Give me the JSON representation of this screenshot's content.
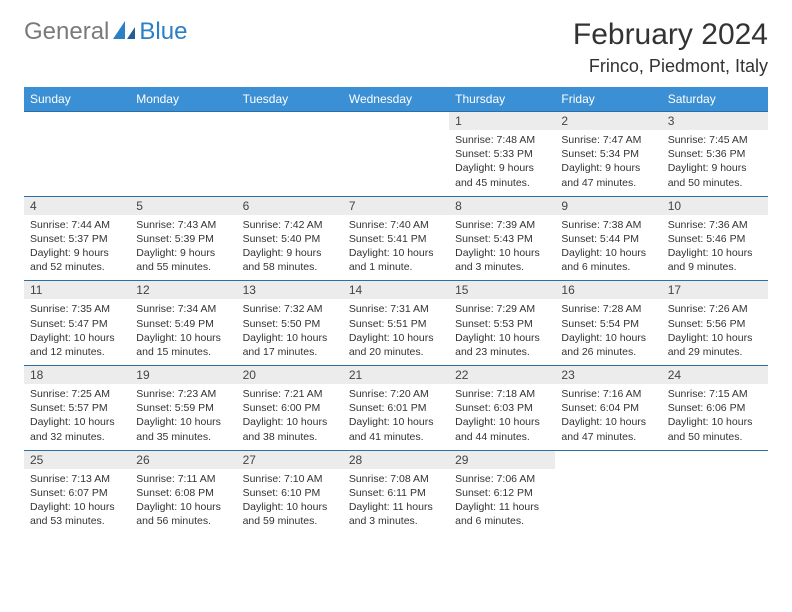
{
  "logo": {
    "text1": "General",
    "text2": "Blue"
  },
  "title": "February 2024",
  "location": "Frinco, Piedmont, Italy",
  "colors": {
    "header_bg": "#3b8fd4",
    "header_text": "#ffffff",
    "border": "#2a6fa8",
    "daynum_bg": "#ececec",
    "text": "#333333",
    "logo_gray": "#7a7a7a",
    "logo_blue": "#2a7fc5"
  },
  "day_headers": [
    "Sunday",
    "Monday",
    "Tuesday",
    "Wednesday",
    "Thursday",
    "Friday",
    "Saturday"
  ],
  "weeks": [
    {
      "nums": [
        "",
        "",
        "",
        "",
        "1",
        "2",
        "3"
      ],
      "cells": [
        null,
        null,
        null,
        null,
        {
          "sr": "Sunrise: 7:48 AM",
          "ss": "Sunset: 5:33 PM",
          "dl": "Daylight: 9 hours and 45 minutes."
        },
        {
          "sr": "Sunrise: 7:47 AM",
          "ss": "Sunset: 5:34 PM",
          "dl": "Daylight: 9 hours and 47 minutes."
        },
        {
          "sr": "Sunrise: 7:45 AM",
          "ss": "Sunset: 5:36 PM",
          "dl": "Daylight: 9 hours and 50 minutes."
        }
      ]
    },
    {
      "nums": [
        "4",
        "5",
        "6",
        "7",
        "8",
        "9",
        "10"
      ],
      "cells": [
        {
          "sr": "Sunrise: 7:44 AM",
          "ss": "Sunset: 5:37 PM",
          "dl": "Daylight: 9 hours and 52 minutes."
        },
        {
          "sr": "Sunrise: 7:43 AM",
          "ss": "Sunset: 5:39 PM",
          "dl": "Daylight: 9 hours and 55 minutes."
        },
        {
          "sr": "Sunrise: 7:42 AM",
          "ss": "Sunset: 5:40 PM",
          "dl": "Daylight: 9 hours and 58 minutes."
        },
        {
          "sr": "Sunrise: 7:40 AM",
          "ss": "Sunset: 5:41 PM",
          "dl": "Daylight: 10 hours and 1 minute."
        },
        {
          "sr": "Sunrise: 7:39 AM",
          "ss": "Sunset: 5:43 PM",
          "dl": "Daylight: 10 hours and 3 minutes."
        },
        {
          "sr": "Sunrise: 7:38 AM",
          "ss": "Sunset: 5:44 PM",
          "dl": "Daylight: 10 hours and 6 minutes."
        },
        {
          "sr": "Sunrise: 7:36 AM",
          "ss": "Sunset: 5:46 PM",
          "dl": "Daylight: 10 hours and 9 minutes."
        }
      ]
    },
    {
      "nums": [
        "11",
        "12",
        "13",
        "14",
        "15",
        "16",
        "17"
      ],
      "cells": [
        {
          "sr": "Sunrise: 7:35 AM",
          "ss": "Sunset: 5:47 PM",
          "dl": "Daylight: 10 hours and 12 minutes."
        },
        {
          "sr": "Sunrise: 7:34 AM",
          "ss": "Sunset: 5:49 PM",
          "dl": "Daylight: 10 hours and 15 minutes."
        },
        {
          "sr": "Sunrise: 7:32 AM",
          "ss": "Sunset: 5:50 PM",
          "dl": "Daylight: 10 hours and 17 minutes."
        },
        {
          "sr": "Sunrise: 7:31 AM",
          "ss": "Sunset: 5:51 PM",
          "dl": "Daylight: 10 hours and 20 minutes."
        },
        {
          "sr": "Sunrise: 7:29 AM",
          "ss": "Sunset: 5:53 PM",
          "dl": "Daylight: 10 hours and 23 minutes."
        },
        {
          "sr": "Sunrise: 7:28 AM",
          "ss": "Sunset: 5:54 PM",
          "dl": "Daylight: 10 hours and 26 minutes."
        },
        {
          "sr": "Sunrise: 7:26 AM",
          "ss": "Sunset: 5:56 PM",
          "dl": "Daylight: 10 hours and 29 minutes."
        }
      ]
    },
    {
      "nums": [
        "18",
        "19",
        "20",
        "21",
        "22",
        "23",
        "24"
      ],
      "cells": [
        {
          "sr": "Sunrise: 7:25 AM",
          "ss": "Sunset: 5:57 PM",
          "dl": "Daylight: 10 hours and 32 minutes."
        },
        {
          "sr": "Sunrise: 7:23 AM",
          "ss": "Sunset: 5:59 PM",
          "dl": "Daylight: 10 hours and 35 minutes."
        },
        {
          "sr": "Sunrise: 7:21 AM",
          "ss": "Sunset: 6:00 PM",
          "dl": "Daylight: 10 hours and 38 minutes."
        },
        {
          "sr": "Sunrise: 7:20 AM",
          "ss": "Sunset: 6:01 PM",
          "dl": "Daylight: 10 hours and 41 minutes."
        },
        {
          "sr": "Sunrise: 7:18 AM",
          "ss": "Sunset: 6:03 PM",
          "dl": "Daylight: 10 hours and 44 minutes."
        },
        {
          "sr": "Sunrise: 7:16 AM",
          "ss": "Sunset: 6:04 PM",
          "dl": "Daylight: 10 hours and 47 minutes."
        },
        {
          "sr": "Sunrise: 7:15 AM",
          "ss": "Sunset: 6:06 PM",
          "dl": "Daylight: 10 hours and 50 minutes."
        }
      ]
    },
    {
      "nums": [
        "25",
        "26",
        "27",
        "28",
        "29",
        "",
        ""
      ],
      "cells": [
        {
          "sr": "Sunrise: 7:13 AM",
          "ss": "Sunset: 6:07 PM",
          "dl": "Daylight: 10 hours and 53 minutes."
        },
        {
          "sr": "Sunrise: 7:11 AM",
          "ss": "Sunset: 6:08 PM",
          "dl": "Daylight: 10 hours and 56 minutes."
        },
        {
          "sr": "Sunrise: 7:10 AM",
          "ss": "Sunset: 6:10 PM",
          "dl": "Daylight: 10 hours and 59 minutes."
        },
        {
          "sr": "Sunrise: 7:08 AM",
          "ss": "Sunset: 6:11 PM",
          "dl": "Daylight: 11 hours and 3 minutes."
        },
        {
          "sr": "Sunrise: 7:06 AM",
          "ss": "Sunset: 6:12 PM",
          "dl": "Daylight: 11 hours and 6 minutes."
        },
        null,
        null
      ]
    }
  ]
}
